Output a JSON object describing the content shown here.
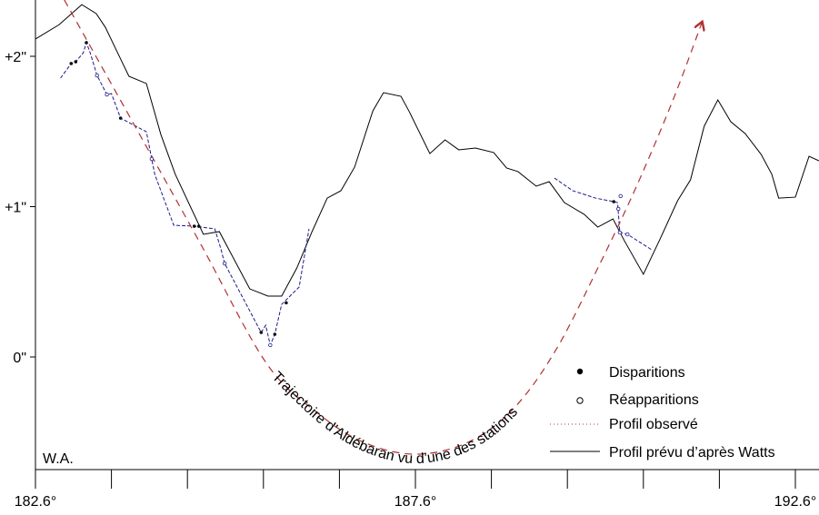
{
  "chart_data": {
    "type": "line",
    "title": "",
    "xlabel": "",
    "ylabel": "",
    "corner_label": "W.A.",
    "xlim": [
      182.6,
      192.9
    ],
    "ylim": [
      -0.75,
      2.38
    ],
    "x_ticks": [
      182.6,
      183.6,
      184.6,
      185.6,
      186.6,
      187.6,
      188.6,
      189.6,
      190.6,
      191.6,
      192.6
    ],
    "x_tick_labels": [
      {
        "value": 182.6,
        "label": "182.6°"
      },
      {
        "value": 187.6,
        "label": "187.6°"
      },
      {
        "value": 192.6,
        "label": "192.6°"
      }
    ],
    "y_ticks": [
      {
        "value": 2,
        "label": "+2\""
      },
      {
        "value": 1,
        "label": "+1\""
      },
      {
        "value": 0,
        "label": "0\""
      }
    ],
    "grid": false,
    "legend_position": "bottom-right",
    "legend": [
      {
        "key": "disparitions",
        "label": "Disparitions"
      },
      {
        "key": "reapparitions",
        "label": "Réapparitions"
      },
      {
        "key": "observed",
        "label": "Profil observé"
      },
      {
        "key": "watts",
        "label": "Profil prévu d’après Watts"
      }
    ],
    "colors": {
      "watts": "#000000",
      "observed": "#1a1a8c",
      "trajectory": "#b03030",
      "legend_dotted": "#b03030"
    },
    "trajectory_label": "Trajectoire d’Aldébaran vu d’une des stations",
    "series": [
      {
        "name": "Profil prévu d’après Watts",
        "key": "watts",
        "points": [
          [
            182.6,
            2.115
          ],
          [
            182.91,
            2.21
          ],
          [
            183.21,
            2.344
          ],
          [
            183.4,
            2.284
          ],
          [
            183.52,
            2.193
          ],
          [
            183.83,
            1.867
          ],
          [
            184.06,
            1.819
          ],
          [
            184.25,
            1.48
          ],
          [
            184.44,
            1.215
          ],
          [
            184.81,
            0.816
          ],
          [
            185.02,
            0.834
          ],
          [
            185.42,
            0.453
          ],
          [
            185.66,
            0.405
          ],
          [
            185.84,
            0.405
          ],
          [
            186.04,
            0.592
          ],
          [
            186.24,
            0.834
          ],
          [
            186.44,
            1.057
          ],
          [
            186.62,
            1.106
          ],
          [
            186.8,
            1.263
          ],
          [
            187.04,
            1.637
          ],
          [
            187.18,
            1.758
          ],
          [
            187.41,
            1.734
          ],
          [
            187.52,
            1.631
          ],
          [
            187.79,
            1.353
          ],
          [
            187.99,
            1.444
          ],
          [
            188.17,
            1.378
          ],
          [
            188.39,
            1.39
          ],
          [
            188.63,
            1.36
          ],
          [
            188.8,
            1.257
          ],
          [
            188.95,
            1.233
          ],
          [
            189.19,
            1.136
          ],
          [
            189.36,
            1.166
          ],
          [
            189.56,
            1.027
          ],
          [
            189.82,
            0.949
          ],
          [
            190.0,
            0.864
          ],
          [
            190.2,
            0.918
          ],
          [
            190.35,
            0.773
          ],
          [
            190.6,
            0.55
          ],
          [
            190.82,
            0.785
          ],
          [
            191.05,
            1.039
          ],
          [
            191.22,
            1.178
          ],
          [
            191.4,
            1.535
          ],
          [
            191.58,
            1.71
          ],
          [
            191.75,
            1.565
          ],
          [
            191.94,
            1.486
          ],
          [
            192.15,
            1.347
          ],
          [
            192.29,
            1.215
          ],
          [
            192.38,
            1.057
          ],
          [
            192.6,
            1.063
          ],
          [
            192.78,
            1.335
          ],
          [
            192.91,
            1.305
          ]
        ]
      },
      {
        "name": "Profil observé (segment 1)",
        "key": "observed",
        "points": [
          [
            182.93,
            1.855
          ],
          [
            183.07,
            1.952
          ],
          [
            183.13,
            1.964
          ],
          [
            183.23,
            2.024
          ],
          [
            183.27,
            2.091
          ],
          [
            183.32,
            2.024
          ],
          [
            183.41,
            1.873
          ],
          [
            183.54,
            1.746
          ],
          [
            183.6,
            1.752
          ],
          [
            183.72,
            1.589
          ],
          [
            184.06,
            1.498
          ],
          [
            184.13,
            1.317
          ],
          [
            184.17,
            1.215
          ],
          [
            184.42,
            0.876
          ],
          [
            184.69,
            0.87
          ],
          [
            184.96,
            0.852
          ],
          [
            185.04,
            0.719
          ],
          [
            185.09,
            0.622
          ],
          [
            185.57,
            0.163
          ],
          [
            185.63,
            0.211
          ],
          [
            185.69,
            0.079
          ],
          [
            185.75,
            0.151
          ],
          [
            185.84,
            0.35
          ],
          [
            186.07,
            0.465
          ],
          [
            186.2,
            0.852
          ]
        ]
      },
      {
        "name": "Profil observé (segment 2)",
        "key": "observed",
        "points": [
          [
            189.43,
            1.19
          ],
          [
            189.67,
            1.106
          ],
          [
            189.97,
            1.057
          ],
          [
            190.21,
            1.033
          ],
          [
            190.26,
            1.027
          ],
          [
            190.29,
            0.828
          ],
          [
            190.39,
            0.816
          ],
          [
            190.71,
            0.713
          ]
        ]
      },
      {
        "name": "Trajectoire d’Aldébaran",
        "key": "trajectory",
        "points": [
          [
            182.98,
            2.375
          ],
          [
            183.93,
            1.517
          ],
          [
            184.77,
            0.755
          ],
          [
            185.64,
            -0.042
          ],
          [
            186.32,
            -0.375
          ],
          [
            186.92,
            -0.568
          ],
          [
            187.6,
            -0.647
          ],
          [
            188.29,
            -0.568
          ],
          [
            188.89,
            -0.344
          ],
          [
            189.45,
            0.048
          ],
          [
            190.03,
            0.622
          ],
          [
            190.51,
            1.136
          ],
          [
            190.99,
            1.71
          ],
          [
            191.37,
            2.224
          ]
        ]
      }
    ],
    "disparitions": [
      [
        183.07,
        1.952
      ],
      [
        183.13,
        1.964
      ],
      [
        183.27,
        2.091
      ],
      [
        183.72,
        1.589
      ],
      [
        184.69,
        0.87
      ],
      [
        184.75,
        0.87
      ],
      [
        185.57,
        0.163
      ],
      [
        185.75,
        0.151
      ],
      [
        185.9,
        0.36
      ],
      [
        190.21,
        1.033
      ]
    ],
    "reapparitions": [
      [
        183.41,
        1.873
      ],
      [
        183.54,
        1.746
      ],
      [
        184.13,
        1.317
      ],
      [
        185.09,
        0.622
      ],
      [
        185.69,
        0.079
      ],
      [
        190.27,
        0.985
      ],
      [
        190.29,
        0.828
      ],
      [
        190.39,
        0.816
      ],
      [
        190.3,
        1.07
      ]
    ]
  }
}
